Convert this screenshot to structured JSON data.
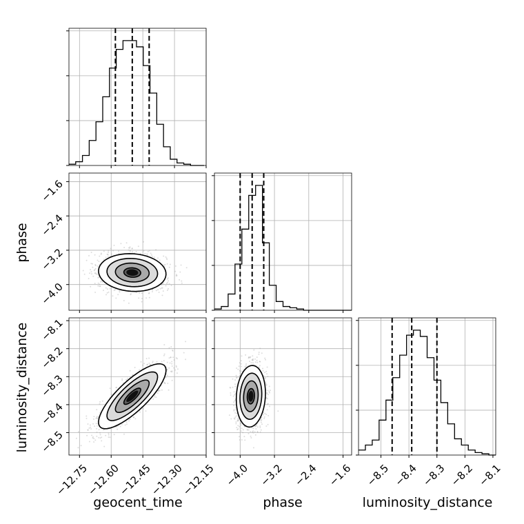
{
  "chart_data": {
    "type": "corner",
    "parameters": [
      "geocent_time",
      "phase",
      "luminosity_distance"
    ],
    "ticks": {
      "geocent_time": {
        "values": [
          -12.75,
          -12.6,
          -12.45,
          -12.3,
          -12.15
        ],
        "labels": [
          "−12.75",
          "−12.60",
          "−12.45",
          "−12.30",
          "−12.15"
        ]
      },
      "phase": {
        "values": [
          -4.0,
          -3.2,
          -2.4,
          -1.6
        ],
        "labels": [
          "−4.0",
          "−3.2",
          "−2.4",
          "−1.6"
        ]
      },
      "luminosity_distance": {
        "values": [
          -8.5,
          -8.4,
          -8.3,
          -8.2,
          -8.1
        ],
        "labels": [
          "−8.5",
          "−8.4",
          "−8.3",
          "−8.2",
          "−8.1"
        ]
      }
    },
    "ranges": {
      "geocent_time": [
        -12.8,
        -12.15
      ],
      "phase": [
        -4.6,
        -1.4
      ],
      "luminosity_distance": [
        -8.58,
        -8.09
      ]
    },
    "histograms": {
      "geocent_time": {
        "bin_edges": [
          -12.8,
          -12.768,
          -12.736,
          -12.704,
          -12.672,
          -12.64,
          -12.608,
          -12.576,
          -12.544,
          -12.512,
          -12.48,
          -12.448,
          -12.416,
          -12.384,
          -12.352,
          -12.32,
          -12.288,
          -12.256,
          -12.224,
          -12.192,
          -12.16
        ],
        "counts": [
          0.01,
          0.03,
          0.08,
          0.2,
          0.35,
          0.55,
          0.78,
          0.93,
          1.0,
          1.0,
          0.95,
          0.8,
          0.58,
          0.33,
          0.15,
          0.05,
          0.02,
          0.01,
          0.0,
          0.0
        ],
        "quantiles": [
          -12.58,
          -12.5,
          -12.42
        ]
      },
      "phase": {
        "bin_edges": [
          -4.6,
          -4.44,
          -4.28,
          -4.12,
          -3.96,
          -3.8,
          -3.64,
          -3.48,
          -3.32,
          -3.16,
          -3.0,
          -2.84,
          -2.68,
          -2.52,
          -2.36,
          -2.2,
          -2.04,
          -1.88,
          -1.72,
          -1.56,
          -1.4
        ],
        "counts": [
          0.01,
          0.03,
          0.13,
          0.37,
          0.65,
          0.92,
          1.0,
          0.54,
          0.2,
          0.07,
          0.03,
          0.02,
          0.01,
          0.0,
          0.0,
          0.0,
          0.0,
          0.0,
          0.0,
          0.0
        ],
        "quantiles": [
          -4.0,
          -3.72,
          -3.45
        ]
      },
      "luminosity_distance": {
        "bin_edges": [
          -8.58,
          -8.5555,
          -8.531,
          -8.5065,
          -8.482,
          -8.4575,
          -8.433,
          -8.4085,
          -8.384,
          -8.3595,
          -8.335,
          -8.3105,
          -8.286,
          -8.2615,
          -8.237,
          -8.2125,
          -8.188,
          -8.1635,
          -8.139,
          -8.1145,
          -8.09
        ],
        "counts": [
          0.04,
          0.08,
          0.12,
          0.28,
          0.44,
          0.62,
          0.8,
          0.96,
          1.0,
          0.95,
          0.78,
          0.6,
          0.42,
          0.25,
          0.13,
          0.08,
          0.04,
          0.02,
          0.01,
          0.0
        ],
        "quantiles": [
          -8.46,
          -8.39,
          -8.3
        ]
      }
    },
    "pairs": [
      {
        "x": "geocent_time",
        "y": "phase",
        "center": [
          -12.5,
          -3.72
        ],
        "sigma": [
          0.08,
          0.22
        ],
        "rho": -0.08
      },
      {
        "x": "geocent_time",
        "y": "luminosity_distance",
        "center": [
          -12.5,
          -8.37
        ],
        "sigma": [
          0.08,
          0.058
        ],
        "rho": 0.8
      },
      {
        "x": "phase",
        "y": "luminosity_distance",
        "center": [
          -3.75,
          -8.37
        ],
        "sigma": [
          0.17,
          0.055
        ],
        "rho": 0.1
      }
    ],
    "contour_levels_sigma": [
      0.5,
      1.0,
      1.5,
      2.0
    ],
    "grid": true
  },
  "axis_titles": {
    "geocent_time": "geocent_time",
    "phase": "phase",
    "luminosity_distance": "luminosity_distance"
  },
  "colors": {
    "line": "#000000",
    "grid": "#b0b0b0",
    "quantile": "#000000",
    "scatter": "#9e9e9e"
  }
}
